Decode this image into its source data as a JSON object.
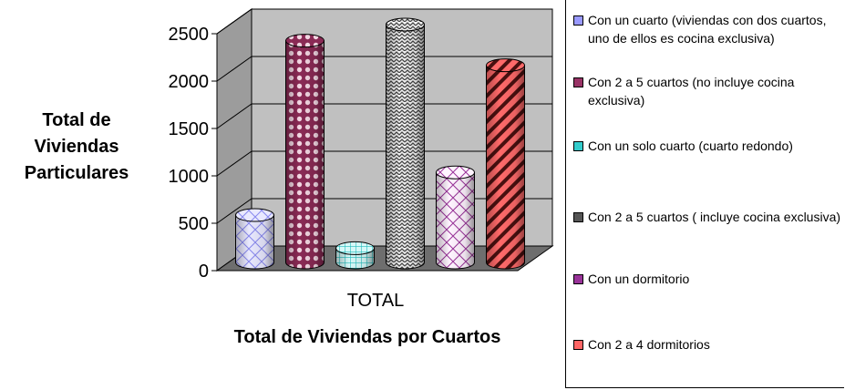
{
  "chart_data": {
    "type": "bar",
    "title": "",
    "xlabel": "Total de Viviendas por Cuartos",
    "ylabel": "Total de Viviendas Particulares",
    "categories": [
      "TOTAL"
    ],
    "ylim": [
      0,
      2500
    ],
    "yticks": [
      0,
      500,
      1000,
      1500,
      2000,
      2500
    ],
    "grid": true,
    "legend_position": "right",
    "series": [
      {
        "name": "Con un cuarto (viviendas con dos cuartos, uno de ellos es cocina exclusiva)",
        "values": [
          500
        ],
        "color": "#9999ff",
        "pattern": "diamond-grid"
      },
      {
        "name": "Con 2 a 5 cuartos (no incluye cocina exclusiva)",
        "values": [
          2340
        ],
        "color": "#993366",
        "pattern": "dots"
      },
      {
        "name": "Con un solo cuarto (cuarto redondo)",
        "values": [
          150
        ],
        "color": "#33cccc",
        "pattern": "grid"
      },
      {
        "name": "Con 2 a 5 cuartos ( incluye cocina exclusiva)",
        "values": [
          2510
        ],
        "color": "#555555",
        "pattern": "zigzag"
      },
      {
        "name": "Con un dormitorio",
        "values": [
          950
        ],
        "color": "#993399",
        "pattern": "diamond-grid"
      },
      {
        "name": "Con 2 a 4 dormitorios",
        "values": [
          2080
        ],
        "color": "#ff6666",
        "pattern": "stripes"
      }
    ]
  }
}
